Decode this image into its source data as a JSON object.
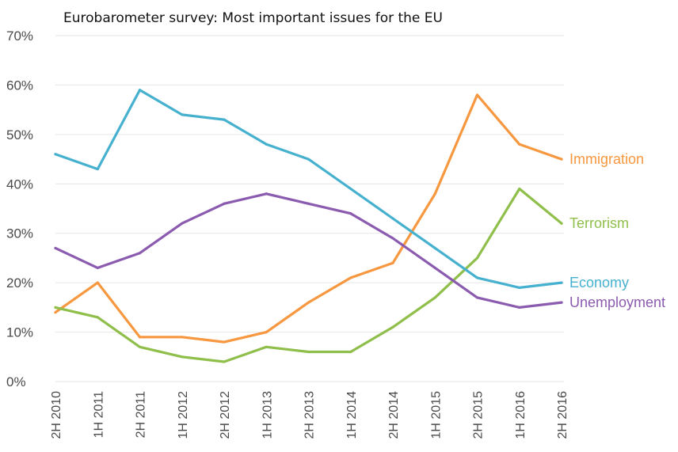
{
  "chart_data": {
    "type": "line",
    "title": "Eurobarometer survey: Most important issues for the EU",
    "xlabel": "",
    "ylabel": "",
    "ylim": [
      0,
      70
    ],
    "yticks": [
      "0%",
      "10%",
      "20%",
      "30%",
      "40%",
      "50%",
      "60%",
      "70%"
    ],
    "ytick_values": [
      0,
      10,
      20,
      30,
      40,
      50,
      60,
      70
    ],
    "grid": true,
    "legend": "inline labels at right end of each line",
    "categories": [
      "2H 2010",
      "1H 2011",
      "2H 2011",
      "1H 2012",
      "2H 2012",
      "1H 2013",
      "2H 2013",
      "1H 2014",
      "2H 2014",
      "1H 2015",
      "2H 2015",
      "1H 2016",
      "2H 2016"
    ],
    "series": [
      {
        "name": "Immigration",
        "color": "#f7973f",
        "values": [
          14,
          20,
          9,
          9,
          8,
          10,
          16,
          21,
          24,
          38,
          58,
          48,
          45
        ]
      },
      {
        "name": "Terrorism",
        "color": "#8fbf4a",
        "values": [
          15,
          13,
          7,
          5,
          4,
          7,
          6,
          6,
          11,
          17,
          25,
          39,
          32
        ]
      },
      {
        "name": "Economy",
        "color": "#45b1cf",
        "values": [
          46,
          43,
          59,
          54,
          53,
          48,
          45,
          39,
          33,
          27,
          21,
          19,
          20
        ]
      },
      {
        "name": "Unemployment",
        "color": "#8b5bb0",
        "values": [
          27,
          23,
          26,
          32,
          36,
          38,
          36,
          34,
          29,
          23,
          17,
          15,
          16
        ]
      }
    ]
  }
}
